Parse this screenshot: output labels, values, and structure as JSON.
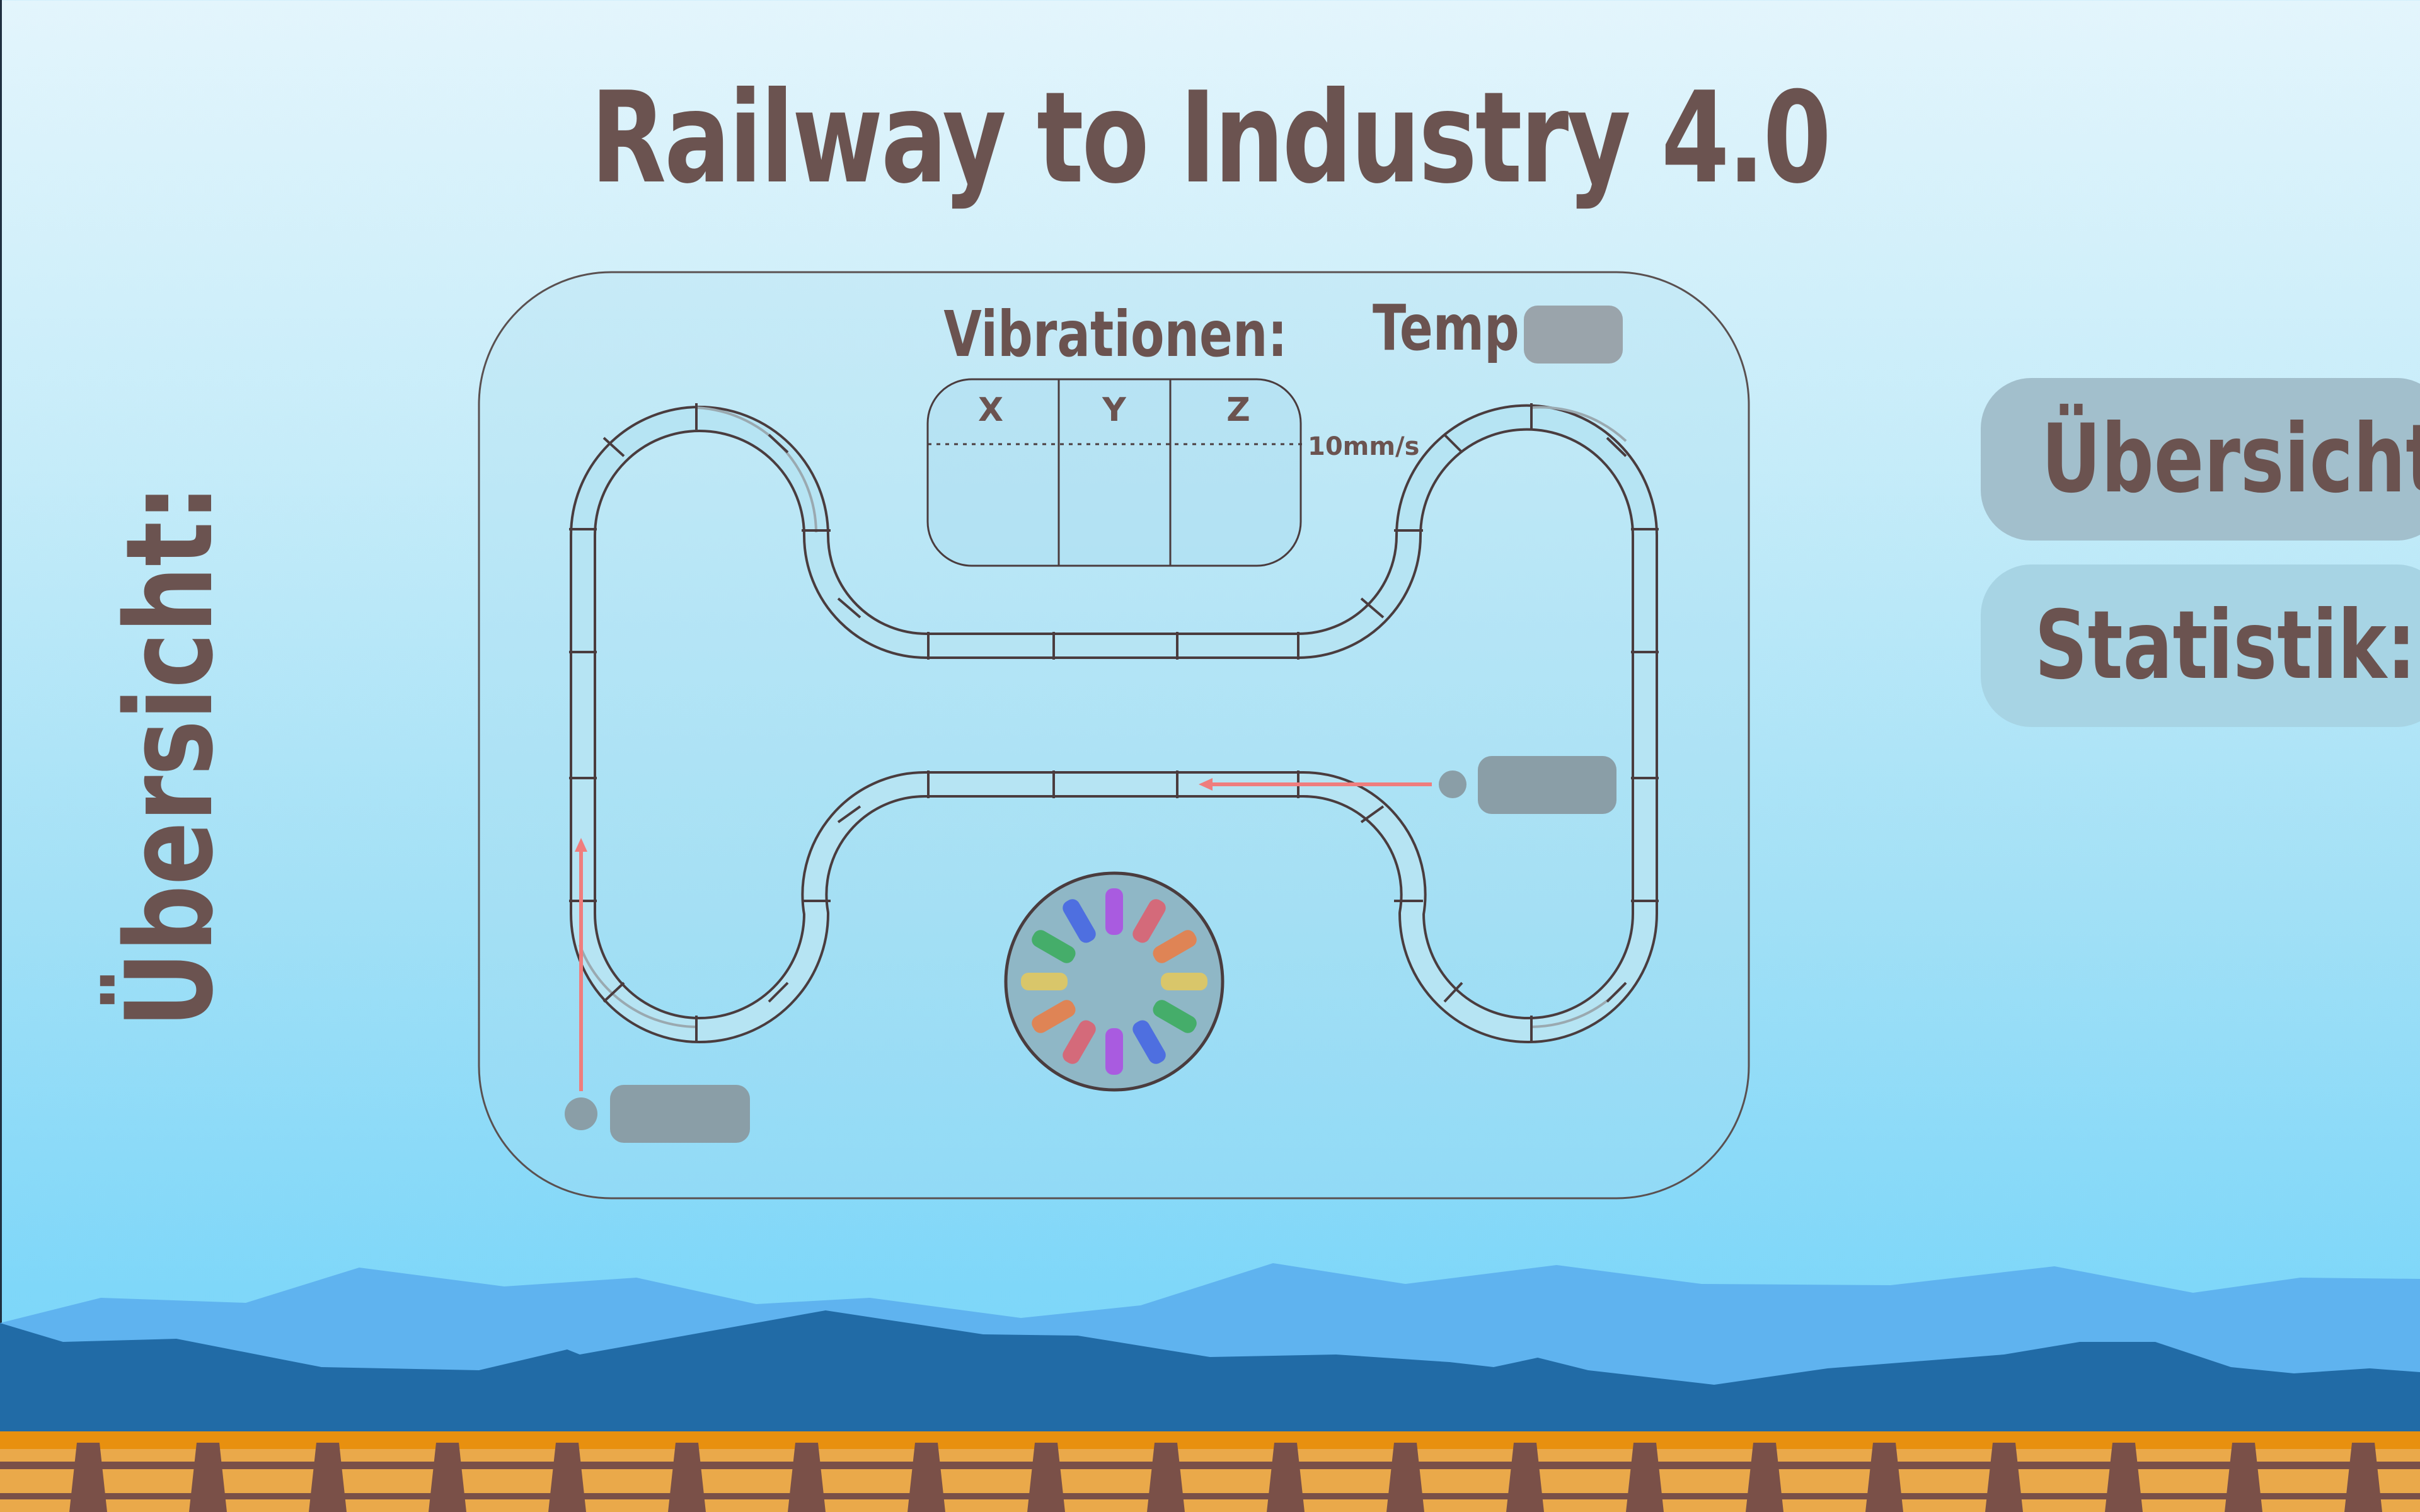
{
  "header": {
    "title": "Railway to Industry 4.0"
  },
  "sidebar": {
    "vertical_title": "Übersicht:"
  },
  "nav": {
    "overview_label": "Übersicht:",
    "statistics_label": "Statistik:"
  },
  "panel": {
    "vibrations_label": "Vibrationen:",
    "temp_label": "Temp:",
    "axes": [
      "X",
      "Y",
      "Z"
    ],
    "threshold_label": "10mm/s"
  },
  "colors": {
    "title_text": "#6b5350",
    "track": "#4a3c3e",
    "marker_arrow": "#ef7d7d",
    "sky_light": "#e3f5fc",
    "sky_bottom": "#7ad6fa",
    "mountain_light": "#5fb3ef",
    "mountain_dark": "#216ba6",
    "rail_orange": "#e8900f",
    "sleeper_brown": "#7a5048"
  },
  "icons": [
    "train-position-marker-icon",
    "turntable-icon"
  ]
}
